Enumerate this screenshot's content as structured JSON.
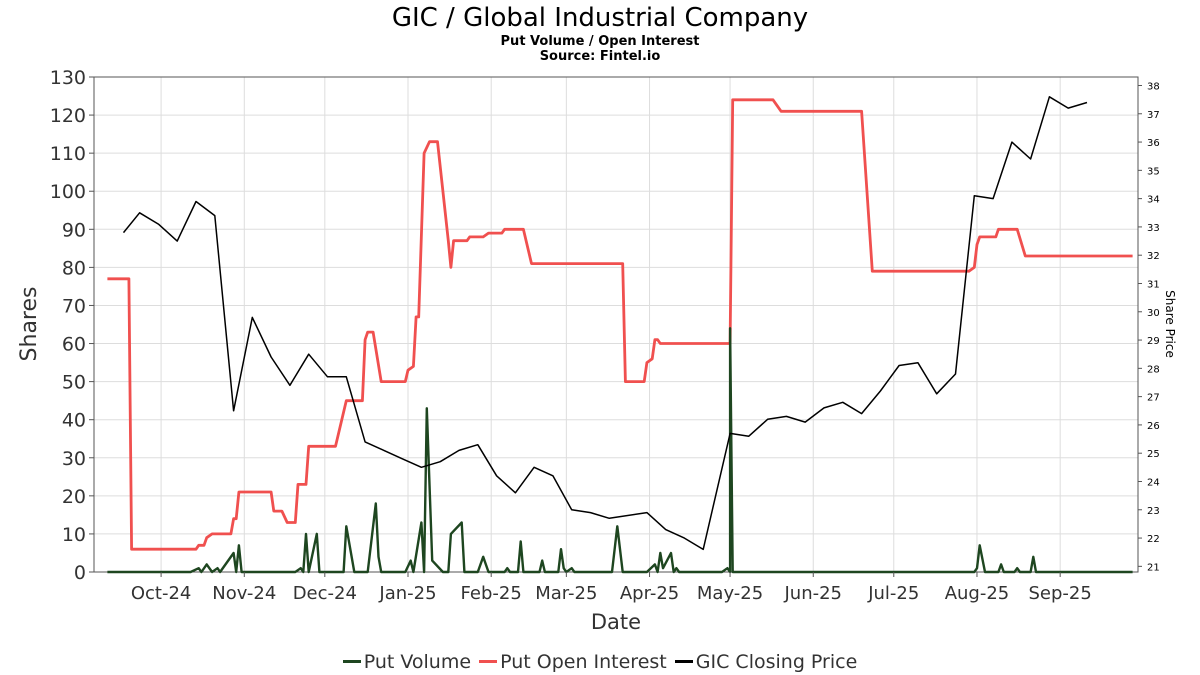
{
  "header": {
    "title": "GIC / Global Industrial Company",
    "subtitle": "Put Volume / Open Interest",
    "source": "Source: Fintel.io"
  },
  "chart_data": {
    "type": "line",
    "xlabel": "Date",
    "ylabel": "Shares",
    "y2label": "Share Price",
    "ylim": [
      0,
      130
    ],
    "y2lim": [
      20.8,
      38.3
    ],
    "xlim": [
      "2024-09-06",
      "2025-09-30"
    ],
    "grid": true,
    "legend_position": "bottom",
    "x_ticks": [
      {
        "label": "Oct-24",
        "date": "2024-10-01"
      },
      {
        "label": "Nov-24",
        "date": "2024-11-01"
      },
      {
        "label": "Dec-24",
        "date": "2024-12-01"
      },
      {
        "label": "Jan-25",
        "date": "2025-01-01"
      },
      {
        "label": "Feb-25",
        "date": "2025-02-01"
      },
      {
        "label": "Mar-25",
        "date": "2025-03-01"
      },
      {
        "label": "Apr-25",
        "date": "2025-04-01"
      },
      {
        "label": "May-25",
        "date": "2025-05-01"
      },
      {
        "label": "Jun-25",
        "date": "2025-06-01"
      },
      {
        "label": "Jul-25",
        "date": "2025-07-01"
      },
      {
        "label": "Aug-25",
        "date": "2025-08-01"
      },
      {
        "label": "Sep-25",
        "date": "2025-09-01"
      }
    ],
    "y_ticks": [
      "0",
      "10",
      "20",
      "30",
      "40",
      "50",
      "60",
      "70",
      "80",
      "90",
      "100",
      "110",
      "120",
      "130"
    ],
    "y2_ticks": [
      "21",
      "22",
      "23",
      "24",
      "25",
      "26",
      "27",
      "28",
      "29",
      "30",
      "31",
      "32",
      "33",
      "34",
      "35",
      "36",
      "37",
      "38"
    ],
    "series": [
      {
        "name": "Put Volume",
        "color": "#1e4620",
        "axis": "left",
        "points": [
          [
            "2024-09-11",
            0
          ],
          [
            "2024-10-01",
            0
          ],
          [
            "2024-10-12",
            0
          ],
          [
            "2024-10-15",
            1
          ],
          [
            "2024-10-16",
            0
          ],
          [
            "2024-10-18",
            2
          ],
          [
            "2024-10-20",
            0
          ],
          [
            "2024-10-22",
            1
          ],
          [
            "2024-10-23",
            0
          ],
          [
            "2024-10-28",
            5
          ],
          [
            "2024-10-29",
            0
          ],
          [
            "2024-10-30",
            7
          ],
          [
            "2024-10-31",
            0
          ],
          [
            "2024-11-20",
            0
          ],
          [
            "2024-11-22",
            1
          ],
          [
            "2024-11-23",
            0
          ],
          [
            "2024-11-24",
            10
          ],
          [
            "2024-11-25",
            0
          ],
          [
            "2024-11-28",
            10
          ],
          [
            "2024-11-29",
            0
          ],
          [
            "2024-12-08",
            0
          ],
          [
            "2024-12-09",
            12
          ],
          [
            "2024-12-12",
            0
          ],
          [
            "2024-12-17",
            0
          ],
          [
            "2024-12-20",
            18
          ],
          [
            "2024-12-21",
            4
          ],
          [
            "2024-12-22",
            0
          ],
          [
            "2024-12-31",
            0
          ],
          [
            "2025-01-02",
            3
          ],
          [
            "2025-01-03",
            0
          ],
          [
            "2025-01-06",
            13
          ],
          [
            "2025-01-07",
            0
          ],
          [
            "2025-01-08",
            43
          ],
          [
            "2025-01-10",
            3
          ],
          [
            "2025-01-14",
            0
          ],
          [
            "2025-01-16",
            0
          ],
          [
            "2025-01-17",
            10
          ],
          [
            "2025-01-21",
            13
          ],
          [
            "2025-01-22",
            0
          ],
          [
            "2025-01-27",
            0
          ],
          [
            "2025-01-29",
            4
          ],
          [
            "2025-01-31",
            0
          ],
          [
            "2025-02-06",
            0
          ],
          [
            "2025-02-07",
            1
          ],
          [
            "2025-02-08",
            0
          ],
          [
            "2025-02-11",
            0
          ],
          [
            "2025-02-12",
            8
          ],
          [
            "2025-02-13",
            0
          ],
          [
            "2025-02-19",
            0
          ],
          [
            "2025-02-20",
            3
          ],
          [
            "2025-02-21",
            0
          ],
          [
            "2025-02-26",
            0
          ],
          [
            "2025-02-27",
            6
          ],
          [
            "2025-02-28",
            1
          ],
          [
            "2025-03-01",
            0
          ],
          [
            "2025-03-03",
            1
          ],
          [
            "2025-03-04",
            0
          ],
          [
            "2025-03-18",
            0
          ],
          [
            "2025-03-20",
            12
          ],
          [
            "2025-03-22",
            0
          ],
          [
            "2025-03-31",
            0
          ],
          [
            "2025-04-03",
            2
          ],
          [
            "2025-04-04",
            0
          ],
          [
            "2025-04-05",
            5
          ],
          [
            "2025-04-06",
            1
          ],
          [
            "2025-04-09",
            5
          ],
          [
            "2025-04-10",
            0
          ],
          [
            "2025-04-11",
            1
          ],
          [
            "2025-04-12",
            0
          ],
          [
            "2025-04-28",
            0
          ],
          [
            "2025-04-30",
            1
          ],
          [
            "2025-05-01",
            0
          ],
          [
            "2025-05-01",
            64
          ],
          [
            "2025-05-02",
            0
          ],
          [
            "2025-07-31",
            0
          ],
          [
            "2025-08-01",
            1
          ],
          [
            "2025-08-02",
            7
          ],
          [
            "2025-08-04",
            0
          ],
          [
            "2025-08-09",
            0
          ],
          [
            "2025-08-10",
            2
          ],
          [
            "2025-08-11",
            0
          ],
          [
            "2025-08-15",
            0
          ],
          [
            "2025-08-16",
            1
          ],
          [
            "2025-08-17",
            0
          ],
          [
            "2025-08-21",
            0
          ],
          [
            "2025-08-22",
            4
          ],
          [
            "2025-08-23",
            0
          ],
          [
            "2025-09-28",
            0
          ]
        ]
      },
      {
        "name": "Put Open Interest",
        "color": "#f0504f",
        "axis": "left",
        "points": [
          [
            "2024-09-11",
            77
          ],
          [
            "2024-09-19",
            77
          ],
          [
            "2024-09-20",
            6
          ],
          [
            "2024-10-14",
            6
          ],
          [
            "2024-10-15",
            7
          ],
          [
            "2024-10-17",
            7
          ],
          [
            "2024-10-18",
            9
          ],
          [
            "2024-10-20",
            10
          ],
          [
            "2024-10-27",
            10
          ],
          [
            "2024-10-28",
            14
          ],
          [
            "2024-10-29",
            14
          ],
          [
            "2024-10-30",
            21
          ],
          [
            "2024-11-11",
            21
          ],
          [
            "2024-11-12",
            16
          ],
          [
            "2024-11-15",
            16
          ],
          [
            "2024-11-17",
            13
          ],
          [
            "2024-11-20",
            13
          ],
          [
            "2024-11-21",
            23
          ],
          [
            "2024-11-24",
            23
          ],
          [
            "2024-11-25",
            33
          ],
          [
            "2024-12-05",
            33
          ],
          [
            "2024-12-09",
            45
          ],
          [
            "2024-12-15",
            45
          ],
          [
            "2024-12-16",
            61
          ],
          [
            "2024-12-17",
            63
          ],
          [
            "2024-12-19",
            63
          ],
          [
            "2024-12-22",
            50
          ],
          [
            "2024-12-31",
            50
          ],
          [
            "2025-01-01",
            53
          ],
          [
            "2025-01-03",
            54
          ],
          [
            "2025-01-04",
            67
          ],
          [
            "2025-01-05",
            67
          ],
          [
            "2025-01-07",
            110
          ],
          [
            "2025-01-09",
            113
          ],
          [
            "2025-01-12",
            113
          ],
          [
            "2025-01-16",
            87
          ],
          [
            "2025-01-17",
            80
          ],
          [
            "2025-01-18",
            87
          ],
          [
            "2025-01-23",
            87
          ],
          [
            "2025-01-24",
            88
          ],
          [
            "2025-01-29",
            88
          ],
          [
            "2025-01-31",
            89
          ],
          [
            "2025-02-05",
            89
          ],
          [
            "2025-02-06",
            90
          ],
          [
            "2025-02-13",
            90
          ],
          [
            "2025-02-16",
            81
          ],
          [
            "2025-03-11",
            81
          ],
          [
            "2025-03-22",
            81
          ],
          [
            "2025-03-23",
            50
          ],
          [
            "2025-03-30",
            50
          ],
          [
            "2025-03-31",
            55
          ],
          [
            "2025-04-02",
            56
          ],
          [
            "2025-04-03",
            61
          ],
          [
            "2025-04-04",
            61
          ],
          [
            "2025-04-05",
            60
          ],
          [
            "2025-04-30",
            60
          ],
          [
            "2025-05-01",
            60
          ],
          [
            "2025-05-02",
            124
          ],
          [
            "2025-05-17",
            124
          ],
          [
            "2025-05-20",
            121
          ],
          [
            "2025-06-19",
            121
          ],
          [
            "2025-06-23",
            79
          ],
          [
            "2025-07-27",
            79
          ],
          [
            "2025-07-29",
            79
          ],
          [
            "2025-07-31",
            80
          ],
          [
            "2025-08-01",
            86
          ],
          [
            "2025-08-02",
            88
          ],
          [
            "2025-08-08",
            88
          ],
          [
            "2025-08-09",
            90
          ],
          [
            "2025-08-16",
            90
          ],
          [
            "2025-08-19",
            83
          ],
          [
            "2025-08-29",
            83
          ],
          [
            "2025-09-28",
            83
          ]
        ]
      },
      {
        "name": "GIC Closing Price",
        "color": "#000000",
        "axis": "right",
        "points": [
          [
            "2024-09-17",
            32.8
          ],
          [
            "2024-09-23",
            33.5
          ],
          [
            "2024-09-30",
            33.1
          ],
          [
            "2024-10-07",
            32.5
          ],
          [
            "2024-10-14",
            33.9
          ],
          [
            "2024-10-21",
            33.4
          ],
          [
            "2024-10-28",
            26.5
          ],
          [
            "2024-11-04",
            29.8
          ],
          [
            "2024-11-11",
            28.4
          ],
          [
            "2024-11-18",
            27.4
          ],
          [
            "2024-11-25",
            28.5
          ],
          [
            "2024-12-02",
            27.7
          ],
          [
            "2024-12-09",
            27.7
          ],
          [
            "2024-12-16",
            25.4
          ],
          [
            "2024-12-23",
            25.1
          ],
          [
            "2024-12-30",
            24.8
          ],
          [
            "2025-01-06",
            24.5
          ],
          [
            "2025-01-13",
            24.7
          ],
          [
            "2025-01-20",
            25.1
          ],
          [
            "2025-01-27",
            25.3
          ],
          [
            "2025-02-03",
            24.2
          ],
          [
            "2025-02-10",
            23.6
          ],
          [
            "2025-02-17",
            24.5
          ],
          [
            "2025-02-24",
            24.2
          ],
          [
            "2025-03-03",
            23.0
          ],
          [
            "2025-03-10",
            22.9
          ],
          [
            "2025-03-17",
            22.7
          ],
          [
            "2025-03-31",
            22.9
          ],
          [
            "2025-04-07",
            22.3
          ],
          [
            "2025-04-14",
            22.0
          ],
          [
            "2025-04-21",
            21.6
          ],
          [
            "2025-05-01",
            25.7
          ],
          [
            "2025-05-08",
            25.6
          ],
          [
            "2025-05-15",
            26.2
          ],
          [
            "2025-05-22",
            26.3
          ],
          [
            "2025-05-29",
            26.1
          ],
          [
            "2025-06-05",
            26.6
          ],
          [
            "2025-06-12",
            26.8
          ],
          [
            "2025-06-19",
            26.4
          ],
          [
            "2025-06-26",
            27.2
          ],
          [
            "2025-07-03",
            28.1
          ],
          [
            "2025-07-10",
            28.2
          ],
          [
            "2025-07-17",
            27.1
          ],
          [
            "2025-07-24",
            27.8
          ],
          [
            "2025-07-31",
            34.1
          ],
          [
            "2025-08-07",
            34.0
          ],
          [
            "2025-08-14",
            36.0
          ],
          [
            "2025-08-21",
            35.4
          ],
          [
            "2025-08-28",
            37.6
          ],
          [
            "2025-09-04",
            37.2
          ],
          [
            "2025-09-11",
            37.4
          ]
        ]
      }
    ]
  }
}
